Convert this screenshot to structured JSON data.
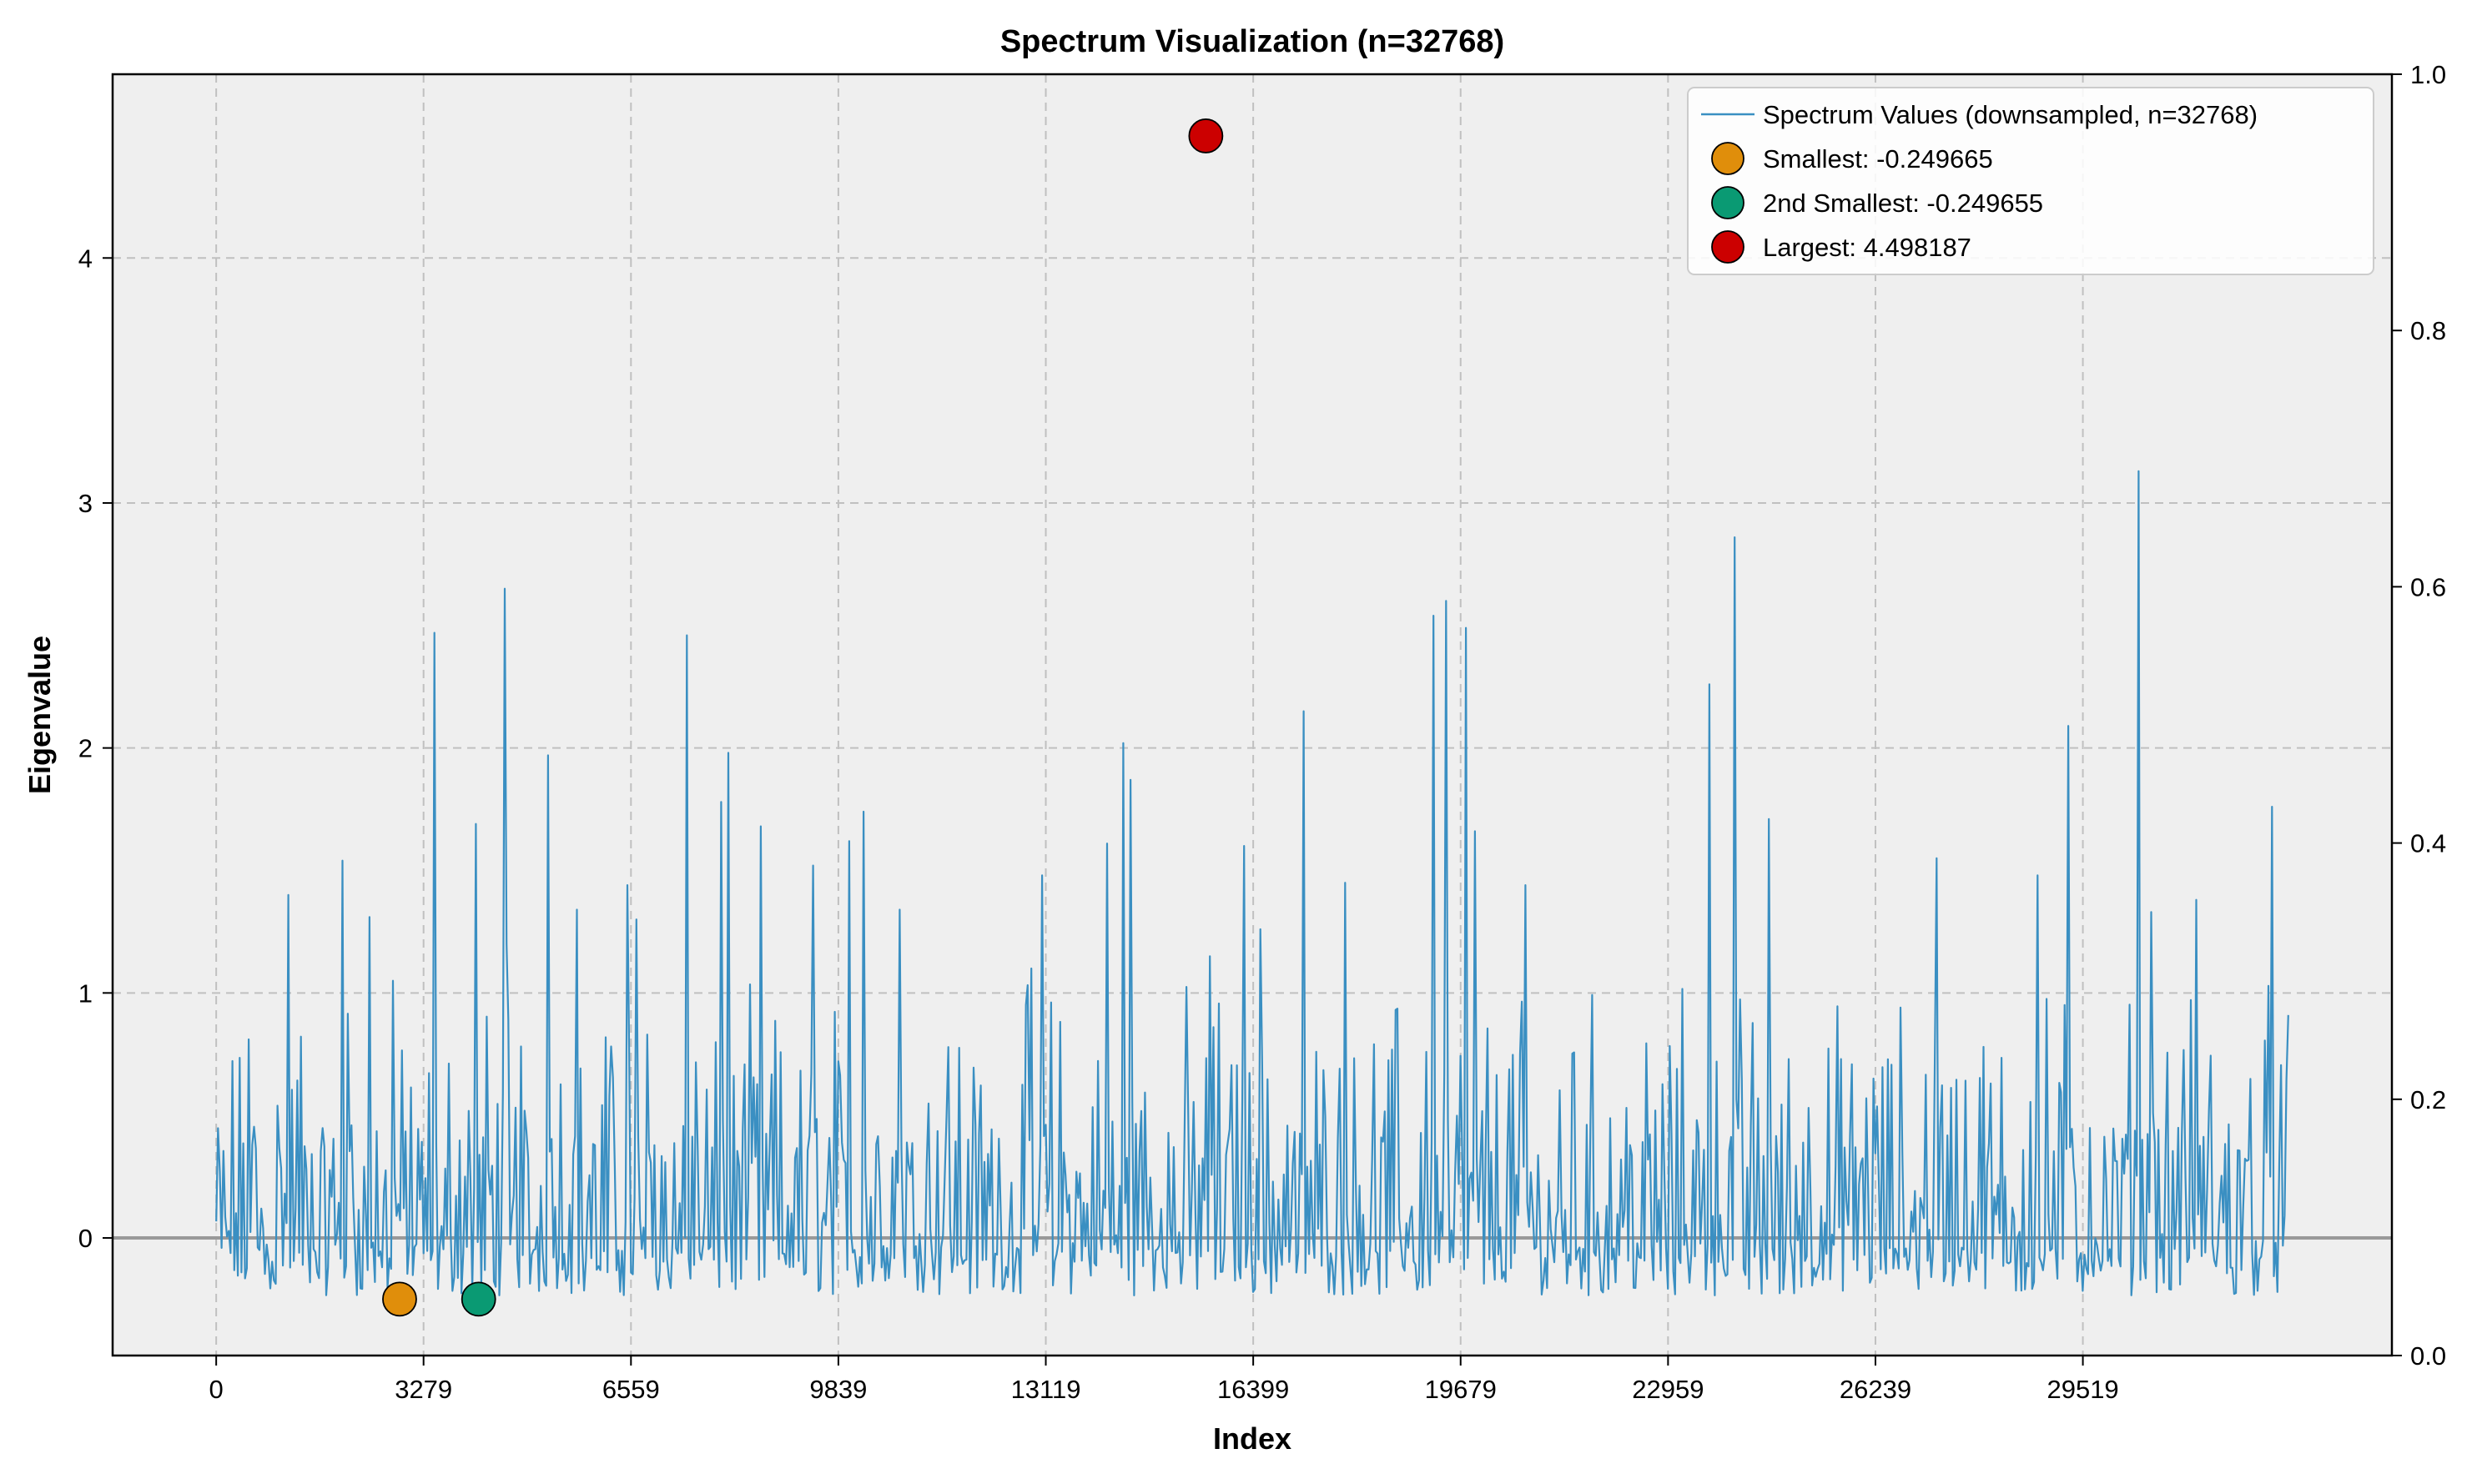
{
  "chart_data": {
    "type": "line",
    "title": "Spectrum Visualization (n=32768)",
    "xlabel": "Index",
    "ylabel": "Eigenvalue",
    "xlim": [
      -1638,
      34406
    ],
    "ylim": [
      -0.48,
      4.75
    ],
    "y2lim": [
      0.0,
      1.0
    ],
    "x_ticks": [
      0,
      3279,
      6559,
      9839,
      13119,
      16399,
      19679,
      22959,
      26239,
      29519
    ],
    "x_tick_labels": [
      "0",
      "3279",
      "6559",
      "9839",
      "13119",
      "16399",
      "19679",
      "22959",
      "26239",
      "29519"
    ],
    "y_ticks": [
      0,
      1,
      2,
      3,
      4
    ],
    "y_tick_labels": [
      "0",
      "1",
      "2",
      "3",
      "4"
    ],
    "y2_ticks": [
      0.0,
      0.2,
      0.4,
      0.6,
      0.8,
      1.0
    ],
    "y2_tick_labels": [
      "0.0",
      "0.2",
      "0.4",
      "0.6",
      "0.8",
      "1.0"
    ],
    "grid": true,
    "legend_position": "top-right",
    "baseline_y": 0,
    "colors": {
      "background": "#efefef",
      "line": "#3a8fc2",
      "grid": "#c0c0c0",
      "baseline": "#999999",
      "smallest": "#e08e0b",
      "second_smallest": "#0a9a73",
      "largest": "#cc0000"
    },
    "series": [
      {
        "name": "Spectrum Values (downsampled, n=32768)",
        "x_start": 0,
        "x_end": 32767,
        "peaks": [
          {
            "x": 1150,
            "y": 1.4
          },
          {
            "x": 2000,
            "y": 1.54
          },
          {
            "x": 2430,
            "y": 1.31
          },
          {
            "x": 2800,
            "y": 1.05
          },
          {
            "x": 3450,
            "y": 2.47
          },
          {
            "x": 4100,
            "y": 1.69
          },
          {
            "x": 4550,
            "y": 2.65
          },
          {
            "x": 4600,
            "y": 1.2
          },
          {
            "x": 5250,
            "y": 1.97
          },
          {
            "x": 5700,
            "y": 1.34
          },
          {
            "x": 6500,
            "y": 1.44
          },
          {
            "x": 6650,
            "y": 1.3
          },
          {
            "x": 7450,
            "y": 2.46
          },
          {
            "x": 7980,
            "y": 1.78
          },
          {
            "x": 8100,
            "y": 1.98
          },
          {
            "x": 8600,
            "y": 1.68
          },
          {
            "x": 9450,
            "y": 1.52
          },
          {
            "x": 10000,
            "y": 1.62
          },
          {
            "x": 10250,
            "y": 1.74
          },
          {
            "x": 10800,
            "y": 1.34
          },
          {
            "x": 12900,
            "y": 1.1
          },
          {
            "x": 13050,
            "y": 1.48
          },
          {
            "x": 14100,
            "y": 1.61
          },
          {
            "x": 14350,
            "y": 2.02
          },
          {
            "x": 14450,
            "y": 1.87
          },
          {
            "x": 15700,
            "y": 1.15
          },
          {
            "x": 16250,
            "y": 1.6
          },
          {
            "x": 16520,
            "y": 1.26
          },
          {
            "x": 17200,
            "y": 2.15
          },
          {
            "x": 17850,
            "y": 1.45
          },
          {
            "x": 19250,
            "y": 2.54
          },
          {
            "x": 19450,
            "y": 2.6
          },
          {
            "x": 19750,
            "y": 2.49
          },
          {
            "x": 19900,
            "y": 1.66
          },
          {
            "x": 20700,
            "y": 1.44
          },
          {
            "x": 23600,
            "y": 2.26
          },
          {
            "x": 24000,
            "y": 2.86
          },
          {
            "x": 24550,
            "y": 1.71
          },
          {
            "x": 27200,
            "y": 1.55
          },
          {
            "x": 28800,
            "y": 1.48
          },
          {
            "x": 29300,
            "y": 2.09
          },
          {
            "x": 30400,
            "y": 3.13
          },
          {
            "x": 30600,
            "y": 1.33
          },
          {
            "x": 31300,
            "y": 1.38
          },
          {
            "x": 32500,
            "y": 1.76
          },
          {
            "x": 32767,
            "y": 0.91
          }
        ]
      }
    ],
    "markers": [
      {
        "name": "Smallest: -0.249665",
        "x": 2900,
        "y": -0.249665,
        "color": "#e08e0b"
      },
      {
        "name": "2nd Smallest: -0.249655",
        "x": 4150,
        "y": -0.249655,
        "color": "#0a9a73"
      },
      {
        "name": "Largest: 4.498187",
        "x": 15650,
        "y": 4.498187,
        "color": "#cc0000"
      }
    ]
  }
}
